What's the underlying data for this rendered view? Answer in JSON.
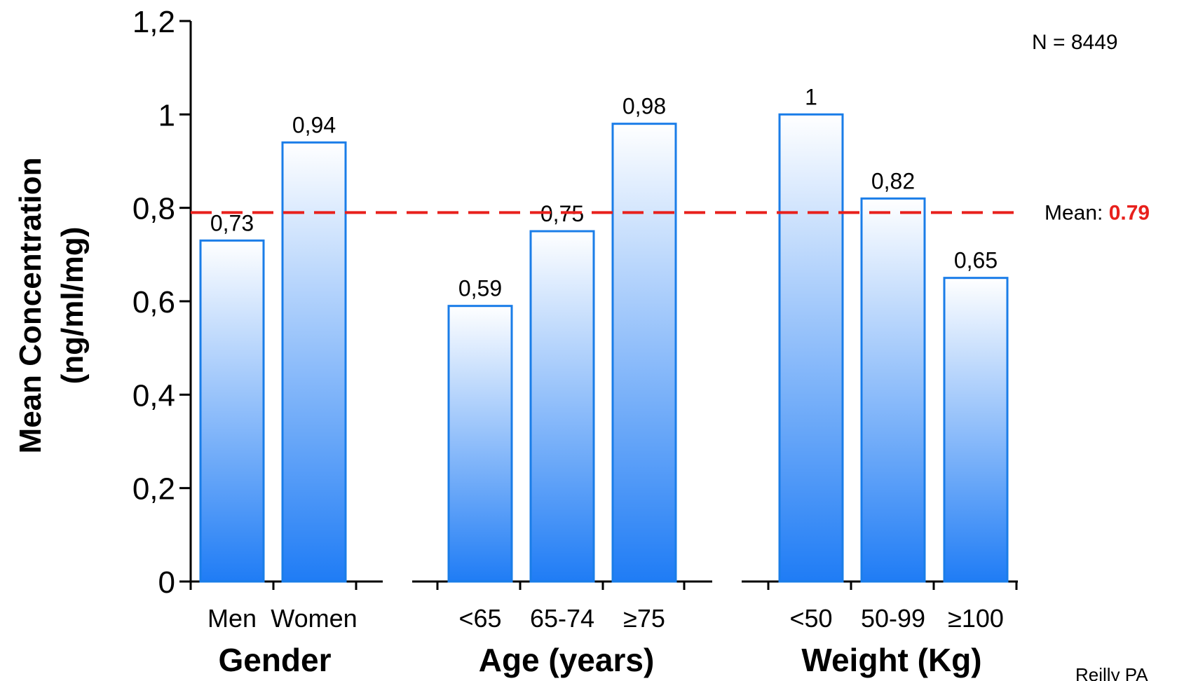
{
  "chart_data": {
    "type": "bar",
    "ylabel_line1": "Mean Concentration",
    "ylabel_line2": "(ng/ml/mg)",
    "ylim": [
      0,
      1.2
    ],
    "yticks": [
      {
        "value": 0,
        "label": "0"
      },
      {
        "value": 0.2,
        "label": "0,2"
      },
      {
        "value": 0.4,
        "label": "0,4"
      },
      {
        "value": 0.6,
        "label": "0,6"
      },
      {
        "value": 0.8,
        "label": "0,8"
      },
      {
        "value": 1.0,
        "label": "1"
      },
      {
        "value": 1.2,
        "label": "1,2"
      }
    ],
    "groups": [
      {
        "name": "Gender",
        "bars": [
          {
            "category": "Men",
            "value": 0.73,
            "label": "0,73"
          },
          {
            "category": "Women",
            "value": 0.94,
            "label": "0,94"
          }
        ]
      },
      {
        "name": "Age (years)",
        "bars": [
          {
            "category": "<65",
            "value": 0.59,
            "label": "0,59"
          },
          {
            "category": "65-74",
            "value": 0.75,
            "label": "0,75"
          },
          {
            "category": "≥75",
            "value": 0.98,
            "label": "0,98"
          }
        ]
      },
      {
        "name": "Weight (Kg)",
        "bars": [
          {
            "category": "<50",
            "value": 1.0,
            "label": "1"
          },
          {
            "category": "50-99",
            "value": 0.82,
            "label": "0,82"
          },
          {
            "category": "≥100",
            "value": 0.65,
            "label": "0,65"
          }
        ]
      }
    ],
    "mean_line": {
      "value": 0.79,
      "prefix": "Mean: ",
      "label": "0.79",
      "color": "#e8201c"
    },
    "n_label": "N = 8449",
    "source": "Reilly PA",
    "colors": {
      "bar_border": "#1a7de8",
      "bar_fill_top": "#ffffff",
      "bar_fill_bottom": "#1f7cf5",
      "axis": "#000000"
    },
    "grid": false
  }
}
